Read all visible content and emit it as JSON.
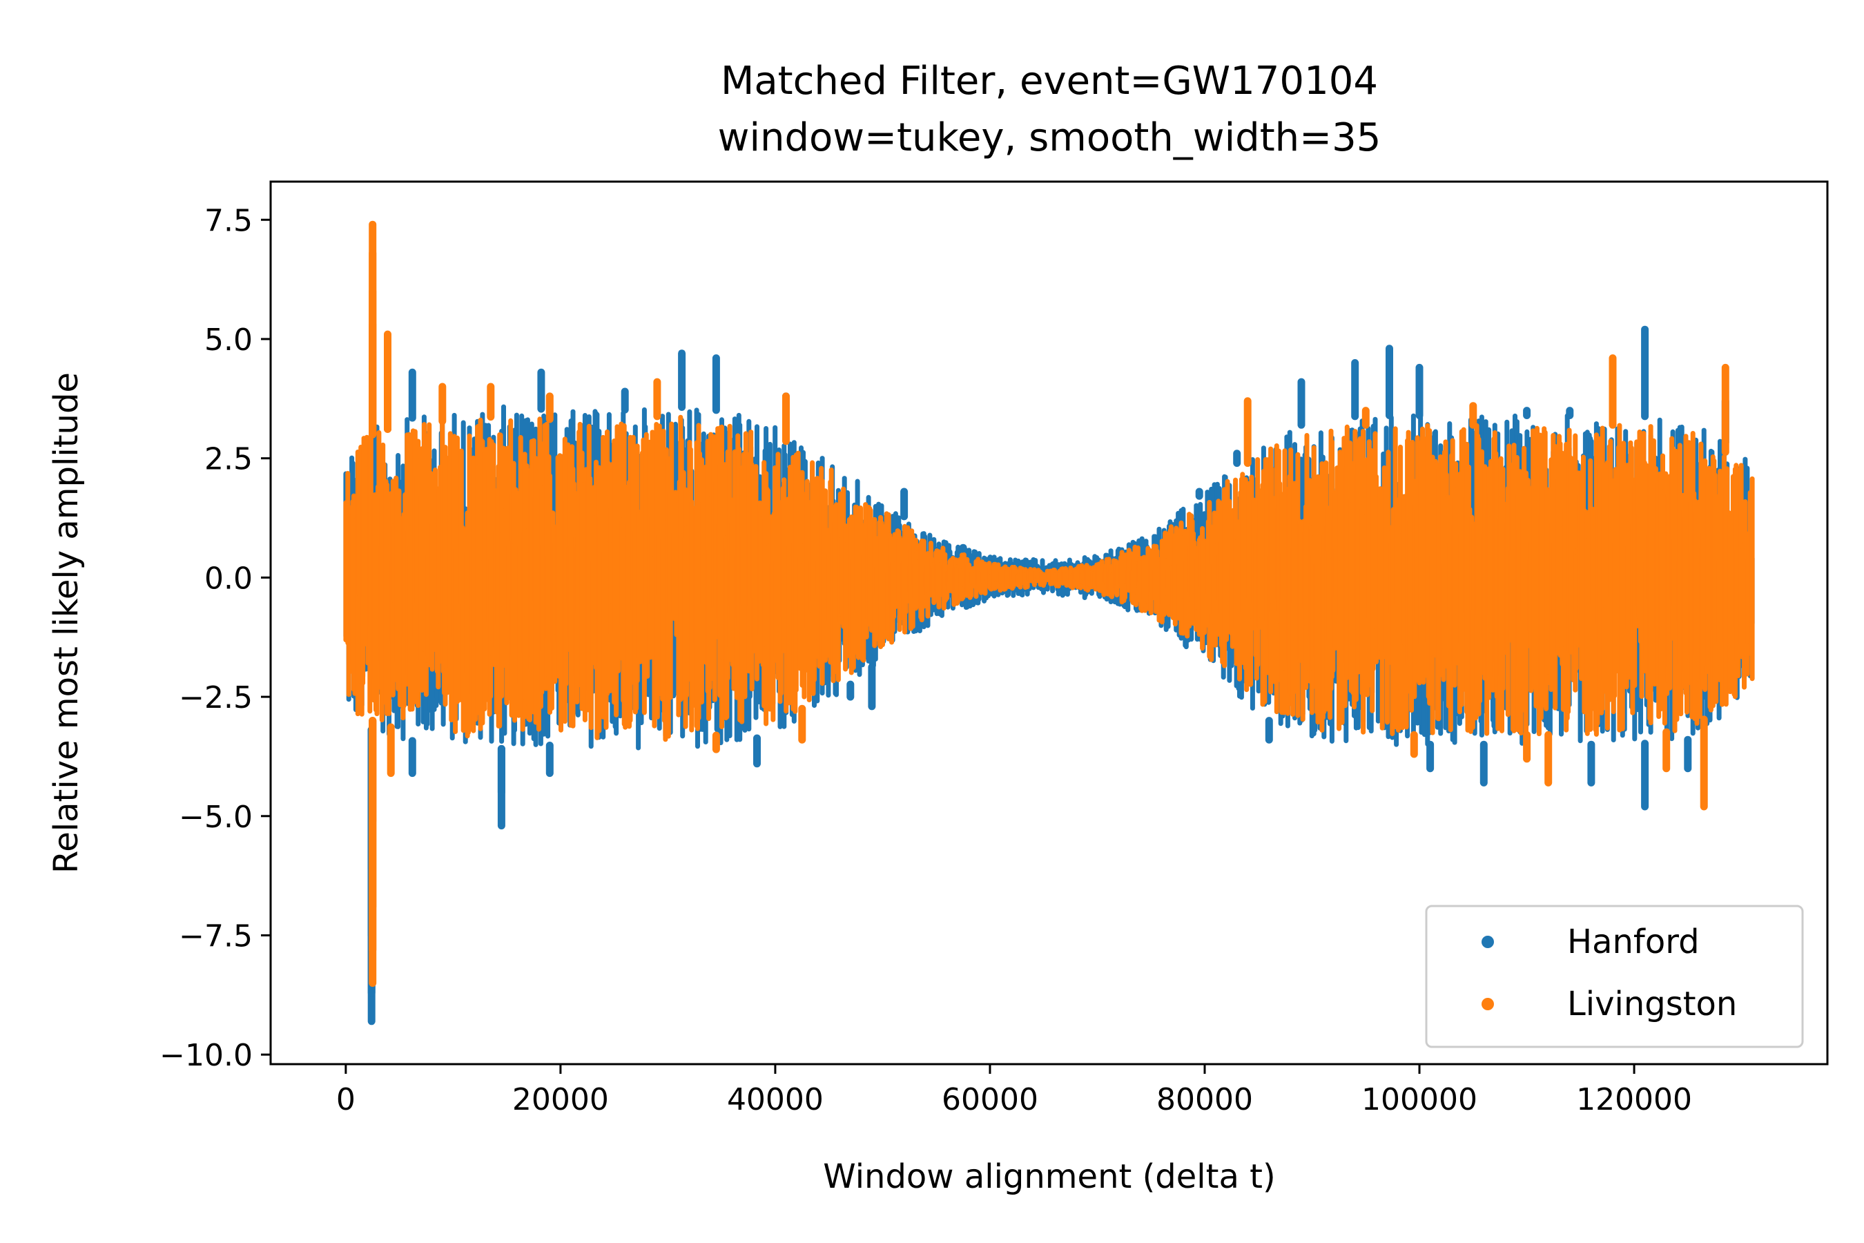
{
  "chart_data": {
    "type": "scatter",
    "title": "Matched Filter, event=GW170104",
    "subtitle": "window=tukey, smooth_width=35",
    "xlabel": "Window alignment (delta t)",
    "ylabel": "Relative most likely amplitude",
    "xlim": [
      -7000,
      138000
    ],
    "ylim": [
      -10.2,
      8.3
    ],
    "xticks": [
      0,
      20000,
      40000,
      60000,
      80000,
      100000,
      120000
    ],
    "xtick_labels": [
      "0",
      "20000",
      "40000",
      "60000",
      "80000",
      "100000",
      "120000"
    ],
    "yticks": [
      7.5,
      5.0,
      2.5,
      0.0,
      -2.5,
      -5.0,
      -7.5,
      -10.0
    ],
    "ytick_labels": [
      "7.5",
      "5.0",
      "2.5",
      "0.0",
      "−2.5",
      "−5.0",
      "−7.5",
      "−10.0"
    ],
    "grid": false,
    "legend_position": "lower-right",
    "series": [
      {
        "name": "Hanford",
        "color": "#1f77b4",
        "envelope": {
          "x": [
            0,
            5000,
            10000,
            15000,
            20000,
            25000,
            30000,
            35000,
            40000,
            45000,
            50000,
            55000,
            60000,
            65500,
            70000,
            75000,
            80000,
            85000,
            90000,
            95000,
            100000,
            105000,
            110000,
            115000,
            120000,
            125000,
            131000
          ],
          "upper": [
            3.0,
            3.3,
            3.5,
            3.6,
            3.5,
            3.5,
            3.6,
            3.5,
            3.2,
            2.5,
            1.6,
            0.8,
            0.45,
            0.35,
            0.45,
            0.9,
            1.8,
            2.8,
            3.3,
            3.4,
            3.4,
            3.4,
            3.4,
            3.4,
            3.4,
            3.3,
            2.5
          ],
          "lower": [
            -3.0,
            -3.4,
            -3.5,
            -3.6,
            -3.5,
            -3.6,
            -3.6,
            -3.5,
            -3.3,
            -2.6,
            -1.7,
            -0.9,
            -0.45,
            -0.35,
            -0.45,
            -0.9,
            -1.8,
            -2.9,
            -3.4,
            -3.5,
            -3.5,
            -3.5,
            -3.5,
            -3.5,
            -3.5,
            -3.4,
            -2.5
          ]
        },
        "peaks": [
          {
            "x": 2400,
            "y": -9.3
          },
          {
            "x": 2400,
            "y": -8.7
          },
          {
            "x": 2400,
            "y": -7.5
          },
          {
            "x": 2400,
            "y": -6.1
          },
          {
            "x": 6200,
            "y": 4.3
          },
          {
            "x": 6200,
            "y": -4.1
          },
          {
            "x": 14500,
            "y": -5.2
          },
          {
            "x": 14500,
            "y": -4.5
          },
          {
            "x": 18200,
            "y": 4.3
          },
          {
            "x": 19000,
            "y": -4.1
          },
          {
            "x": 26000,
            "y": 3.9
          },
          {
            "x": 31300,
            "y": 4.7
          },
          {
            "x": 34500,
            "y": 4.6
          },
          {
            "x": 38300,
            "y": -3.9
          },
          {
            "x": 41000,
            "y": 3.8
          },
          {
            "x": 47000,
            "y": -2.5
          },
          {
            "x": 49000,
            "y": -2.7
          },
          {
            "x": 52000,
            "y": 1.8
          },
          {
            "x": 57500,
            "y": 0.5
          },
          {
            "x": 79500,
            "y": 1.8
          },
          {
            "x": 83000,
            "y": 2.6
          },
          {
            "x": 86000,
            "y": -3.4
          },
          {
            "x": 89000,
            "y": 4.1
          },
          {
            "x": 94000,
            "y": 4.5
          },
          {
            "x": 97200,
            "y": 4.8
          },
          {
            "x": 100000,
            "y": 4.4
          },
          {
            "x": 101000,
            "y": -4.0
          },
          {
            "x": 106000,
            "y": -4.3
          },
          {
            "x": 110000,
            "y": 3.5
          },
          {
            "x": 114000,
            "y": 3.5
          },
          {
            "x": 116000,
            "y": -4.3
          },
          {
            "x": 121000,
            "y": 5.2
          },
          {
            "x": 121000,
            "y": -4.8
          },
          {
            "x": 125000,
            "y": -4.0
          },
          {
            "x": 128500,
            "y": 3.7
          }
        ]
      },
      {
        "name": "Livingston",
        "color": "#ff7f0e",
        "envelope": {
          "x": [
            0,
            5000,
            10000,
            15000,
            20000,
            25000,
            30000,
            35000,
            40000,
            45000,
            50000,
            55000,
            60000,
            65500,
            70000,
            75000,
            80000,
            85000,
            90000,
            95000,
            100000,
            105000,
            110000,
            115000,
            120000,
            125000,
            131000
          ],
          "upper": [
            2.8,
            3.2,
            3.3,
            3.4,
            3.3,
            3.3,
            3.4,
            3.3,
            3.0,
            2.3,
            1.4,
            0.7,
            0.3,
            0.15,
            0.3,
            0.8,
            1.6,
            2.6,
            3.1,
            3.2,
            3.2,
            3.2,
            3.2,
            3.2,
            3.2,
            3.1,
            2.3
          ],
          "lower": [
            -2.8,
            -3.2,
            -3.3,
            -3.4,
            -3.3,
            -3.4,
            -3.4,
            -3.3,
            -3.1,
            -2.4,
            -1.5,
            -0.7,
            -0.3,
            -0.15,
            -0.3,
            -0.8,
            -1.6,
            -2.7,
            -3.2,
            -3.3,
            -3.3,
            -3.3,
            -3.3,
            -3.3,
            -3.3,
            -3.2,
            -2.3
          ]
        },
        "peaks": [
          {
            "x": 2500,
            "y": 7.4
          },
          {
            "x": 2500,
            "y": 6.8
          },
          {
            "x": 2500,
            "y": 6.0
          },
          {
            "x": 2500,
            "y": 5.3
          },
          {
            "x": 3900,
            "y": 5.1
          },
          {
            "x": 3900,
            "y": 4.2
          },
          {
            "x": 2500,
            "y": -8.5
          },
          {
            "x": 2500,
            "y": -7.8
          },
          {
            "x": 2500,
            "y": -6.9
          },
          {
            "x": 2500,
            "y": -5.1
          },
          {
            "x": 4200,
            "y": -4.1
          },
          {
            "x": 9000,
            "y": 4.0
          },
          {
            "x": 13500,
            "y": 4.0
          },
          {
            "x": 19000,
            "y": 3.8
          },
          {
            "x": 29000,
            "y": 4.1
          },
          {
            "x": 34500,
            "y": -3.6
          },
          {
            "x": 41000,
            "y": 3.8
          },
          {
            "x": 42500,
            "y": -3.4
          },
          {
            "x": 84000,
            "y": 3.7
          },
          {
            "x": 95000,
            "y": 3.5
          },
          {
            "x": 99500,
            "y": -3.7
          },
          {
            "x": 105000,
            "y": 3.6
          },
          {
            "x": 110000,
            "y": -3.8
          },
          {
            "x": 112000,
            "y": -4.3
          },
          {
            "x": 118000,
            "y": 4.6
          },
          {
            "x": 123000,
            "y": -4.0
          },
          {
            "x": 126500,
            "y": -4.8
          },
          {
            "x": 128500,
            "y": 4.4
          }
        ]
      }
    ]
  }
}
